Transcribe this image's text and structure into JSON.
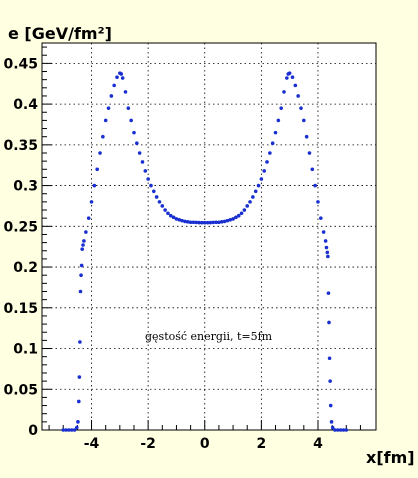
{
  "colors": {
    "frame_bg": "#ffffe1",
    "plot_bg": "#ffffff",
    "axis": "#000000",
    "grid": "#000000",
    "marker": "#1a2fd0"
  },
  "chart_data": {
    "type": "scatter",
    "ylabel": "e [GeV/fm²]",
    "xlabel": "x[fm]",
    "annotation": "gęstość energii, t=5fm",
    "xlim": [
      -5.75,
      6.05
    ],
    "ylim": [
      0,
      0.475
    ],
    "grid": true,
    "x_ticks": [
      {
        "value": -4,
        "label": "-4"
      },
      {
        "value": -2,
        "label": "-2"
      },
      {
        "value": 0,
        "label": "0"
      },
      {
        "value": 2,
        "label": "2"
      },
      {
        "value": 4,
        "label": "4"
      }
    ],
    "y_ticks": [
      {
        "value": 0,
        "label": "0"
      },
      {
        "value": 0.05,
        "label": "0.05"
      },
      {
        "value": 0.1,
        "label": "0.1"
      },
      {
        "value": 0.15,
        "label": "0.15"
      },
      {
        "value": 0.2,
        "label": "0.2"
      },
      {
        "value": 0.25,
        "label": "0.25"
      },
      {
        "value": 0.3,
        "label": "0.3"
      },
      {
        "value": 0.35,
        "label": "0.35"
      },
      {
        "value": 0.4,
        "label": "0.4"
      },
      {
        "value": 0.45,
        "label": "0.45"
      }
    ],
    "series": [
      {
        "points": [
          [
            -5.0,
            0.0
          ],
          [
            -4.9,
            0.0
          ],
          [
            -4.8,
            0.0
          ],
          [
            -4.7,
            0.0
          ],
          [
            -4.6,
            0.0
          ],
          [
            -4.52,
            0.003
          ],
          [
            -4.48,
            0.01
          ],
          [
            -4.45,
            0.035
          ],
          [
            -4.43,
            0.065
          ],
          [
            -4.41,
            0.108
          ],
          [
            -4.39,
            0.17
          ],
          [
            -4.37,
            0.19
          ],
          [
            -4.35,
            0.202
          ],
          [
            -4.33,
            0.222
          ],
          [
            -4.3,
            0.227
          ],
          [
            -4.27,
            0.232
          ],
          [
            -4.2,
            0.243
          ],
          [
            -4.1,
            0.26
          ],
          [
            -4.0,
            0.28
          ],
          [
            -3.9,
            0.3
          ],
          [
            -3.8,
            0.32
          ],
          [
            -3.7,
            0.34
          ],
          [
            -3.6,
            0.36
          ],
          [
            -3.5,
            0.38
          ],
          [
            -3.4,
            0.395
          ],
          [
            -3.3,
            0.41
          ],
          [
            -3.2,
            0.423
          ],
          [
            -3.1,
            0.433
          ],
          [
            -3.0,
            0.438
          ],
          [
            -2.95,
            0.437
          ],
          [
            -2.9,
            0.432
          ],
          [
            -2.8,
            0.415
          ],
          [
            -2.7,
            0.395
          ],
          [
            -2.6,
            0.38
          ],
          [
            -2.5,
            0.365
          ],
          [
            -2.4,
            0.352
          ],
          [
            -2.3,
            0.34
          ],
          [
            -2.2,
            0.329
          ],
          [
            -2.1,
            0.318
          ],
          [
            -2.0,
            0.308
          ],
          [
            -1.9,
            0.3
          ],
          [
            -1.8,
            0.293
          ],
          [
            -1.7,
            0.286
          ],
          [
            -1.6,
            0.28
          ],
          [
            -1.5,
            0.275
          ],
          [
            -1.4,
            0.27
          ],
          [
            -1.3,
            0.266
          ],
          [
            -1.2,
            0.263
          ],
          [
            -1.1,
            0.261
          ],
          [
            -1.0,
            0.259
          ],
          [
            -0.9,
            0.258
          ],
          [
            -0.8,
            0.257
          ],
          [
            -0.7,
            0.256
          ],
          [
            -0.6,
            0.2555
          ],
          [
            -0.5,
            0.255
          ],
          [
            -0.4,
            0.255
          ],
          [
            -0.3,
            0.2548
          ],
          [
            -0.2,
            0.2546
          ],
          [
            -0.1,
            0.2545
          ],
          [
            0.0,
            0.2545
          ],
          [
            0.1,
            0.2545
          ],
          [
            0.2,
            0.2546
          ],
          [
            0.3,
            0.2548
          ],
          [
            0.4,
            0.255
          ],
          [
            0.5,
            0.255
          ],
          [
            0.6,
            0.2555
          ],
          [
            0.7,
            0.256
          ],
          [
            0.8,
            0.257
          ],
          [
            0.9,
            0.258
          ],
          [
            1.0,
            0.259
          ],
          [
            1.1,
            0.261
          ],
          [
            1.2,
            0.263
          ],
          [
            1.3,
            0.266
          ],
          [
            1.4,
            0.27
          ],
          [
            1.5,
            0.275
          ],
          [
            1.6,
            0.28
          ],
          [
            1.7,
            0.286
          ],
          [
            1.8,
            0.293
          ],
          [
            1.9,
            0.3
          ],
          [
            2.0,
            0.308
          ],
          [
            2.1,
            0.318
          ],
          [
            2.2,
            0.329
          ],
          [
            2.3,
            0.34
          ],
          [
            2.4,
            0.352
          ],
          [
            2.5,
            0.365
          ],
          [
            2.6,
            0.38
          ],
          [
            2.7,
            0.395
          ],
          [
            2.8,
            0.415
          ],
          [
            2.9,
            0.432
          ],
          [
            2.95,
            0.437
          ],
          [
            3.0,
            0.438
          ],
          [
            3.1,
            0.433
          ],
          [
            3.2,
            0.423
          ],
          [
            3.3,
            0.41
          ],
          [
            3.4,
            0.395
          ],
          [
            3.5,
            0.38
          ],
          [
            3.6,
            0.36
          ],
          [
            3.7,
            0.34
          ],
          [
            3.8,
            0.32
          ],
          [
            3.9,
            0.3
          ],
          [
            4.0,
            0.28
          ],
          [
            4.1,
            0.26
          ],
          [
            4.2,
            0.243
          ],
          [
            4.27,
            0.232
          ],
          [
            4.3,
            0.224
          ],
          [
            4.33,
            0.218
          ],
          [
            4.35,
            0.213
          ],
          [
            4.37,
            0.168
          ],
          [
            4.39,
            0.132
          ],
          [
            4.41,
            0.088
          ],
          [
            4.43,
            0.06
          ],
          [
            4.45,
            0.03
          ],
          [
            4.48,
            0.01
          ],
          [
            4.52,
            0.003
          ],
          [
            4.6,
            0.0
          ],
          [
            4.7,
            0.0
          ],
          [
            4.8,
            0.0
          ],
          [
            4.9,
            0.0
          ],
          [
            5.0,
            0.0
          ]
        ]
      }
    ]
  }
}
